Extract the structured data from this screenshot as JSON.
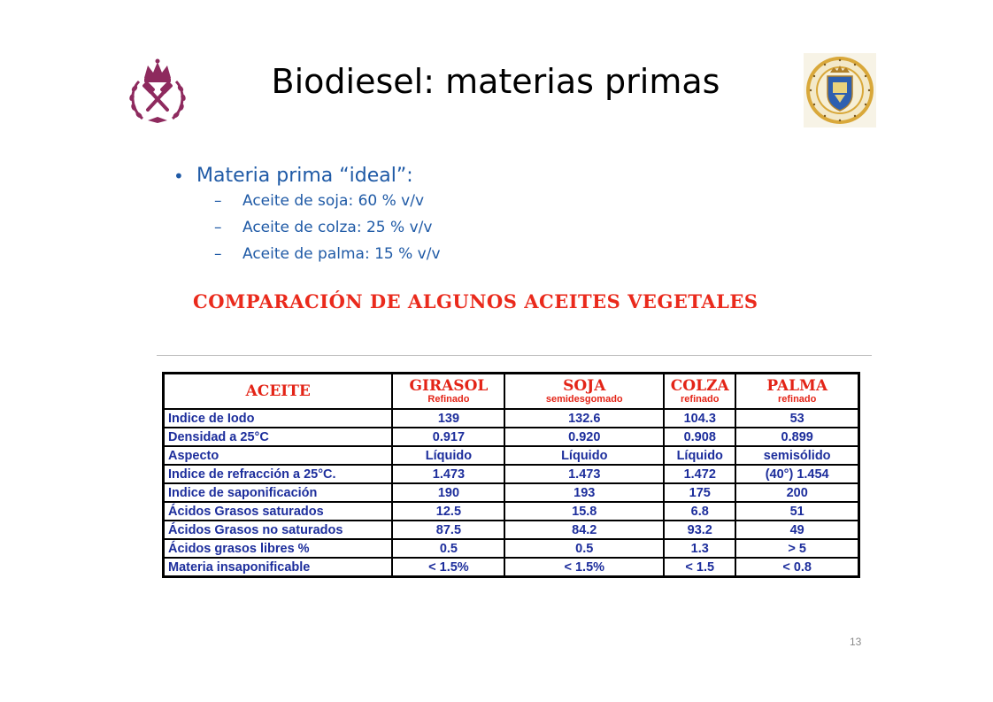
{
  "slide": {
    "title": "Biodiesel: materias primas",
    "page_number": "13"
  },
  "logos": {
    "left": "crown-hammers-crest-icon",
    "right": "university-seal-icon"
  },
  "bullets": {
    "main": "Materia prima “ideal”:",
    "sub": [
      "Aceite de soja: 60 % v/v",
      "Aceite de colza: 25 % v/v",
      "Aceite de palma: 15 % v/v"
    ]
  },
  "table": {
    "heading": "COMPARACIÓN DE ALGUNOS ACEITES VEGETALES",
    "columns": [
      {
        "label": "ACEITE",
        "sub": ""
      },
      {
        "label": "GIRASOL",
        "sub": "Refinado"
      },
      {
        "label": "SOJA",
        "sub": "semidesgomado"
      },
      {
        "label": "COLZA",
        "sub": "refinado"
      },
      {
        "label": "PALMA",
        "sub": "refinado"
      }
    ],
    "rows": [
      {
        "label": "Indice de Iodo",
        "values": [
          "139",
          "132.6",
          "104.3",
          "53"
        ]
      },
      {
        "label": "Densidad a 25°C",
        "values": [
          "0.917",
          "0.920",
          "0.908",
          "0.899"
        ]
      },
      {
        "label": "Aspecto",
        "values": [
          "Líquido",
          "Líquido",
          "Líquido",
          "semisólido"
        ]
      },
      {
        "label": "Indice de refracción a 25°C.",
        "values": [
          "1.473",
          "1.473",
          "1.472",
          "(40°) 1.454"
        ]
      },
      {
        "label": "Indice de saponificación",
        "values": [
          "190",
          "193",
          "175",
          "200"
        ]
      },
      {
        "label": "Ácidos Grasos saturados",
        "values": [
          "12.5",
          "15.8",
          "6.8",
          "51"
        ]
      },
      {
        "label": "Ácidos Grasos no saturados",
        "values": [
          "87.5",
          "84.2",
          "93.2",
          "49"
        ]
      },
      {
        "label": "Ácidos grasos libres %",
        "values": [
          "0.5",
          "0.5",
          "1.3",
          "> 5"
        ]
      },
      {
        "label": "Materia insaponificable",
        "values": [
          "< 1.5%",
          "< 1.5%",
          "< 1.5",
          "< 0.8"
        ]
      }
    ],
    "colors": {
      "header": "#e32417",
      "cells": "#1d2e9c",
      "bullets": "#1f5aa6"
    }
  }
}
